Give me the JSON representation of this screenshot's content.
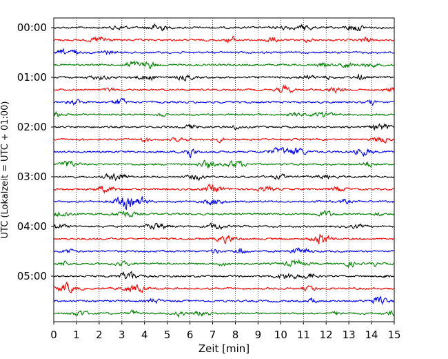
{
  "chart_data": {
    "type": "line",
    "title": "",
    "xlabel": "Zeit  [min]",
    "ylabel": "UTC (Lokalzeit = UTC + 01:00)",
    "xlim": [
      0,
      15
    ],
    "x_ticks": [
      "0",
      "1",
      "2",
      "3",
      "4",
      "5",
      "6",
      "7",
      "8",
      "9",
      "10",
      "11",
      "12",
      "13",
      "14",
      "15"
    ],
    "y_tick_labels": [
      "00:00",
      "01:00",
      "02:00",
      "03:00",
      "04:00",
      "05:00"
    ],
    "grid": "vertical dotted",
    "trace_interval_minutes": 15,
    "trace_count": 24,
    "trace_colors": [
      "#000000",
      "#ff0000",
      "#0000ff",
      "#008000"
    ],
    "trace_start_times": [
      "00:00",
      "00:15",
      "00:30",
      "00:45",
      "01:00",
      "01:15",
      "01:30",
      "01:45",
      "02:00",
      "02:15",
      "02:30",
      "02:45",
      "03:00",
      "03:15",
      "03:30",
      "03:45",
      "04:00",
      "04:15",
      "04:30",
      "04:45",
      "05:00",
      "05:15",
      "05:30",
      "05:45"
    ]
  }
}
